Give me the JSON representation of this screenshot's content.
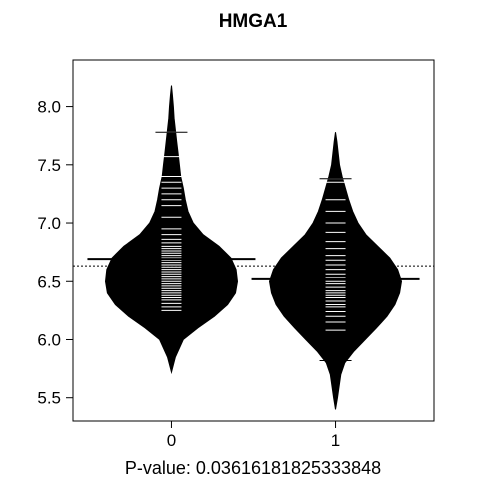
{
  "chart_data": {
    "type": "beanplot",
    "title": "HMGA1",
    "xlabel": "P-value: 0.03616181825333848",
    "ylabel": "",
    "categories": [
      "0",
      "1"
    ],
    "yticks": [
      "5.5",
      "6.0",
      "6.5",
      "7.0",
      "7.5",
      "8.0"
    ],
    "ylim": [
      5.3,
      8.4
    ],
    "xlim": [
      -0.6,
      1.6
    ],
    "overall_mean": 6.63,
    "series": [
      {
        "category": "0",
        "mean": 6.69,
        "range": [
          5.72,
          8.18
        ],
        "density": [
          [
            5.72,
            0.0
          ],
          [
            5.85,
            0.06
          ],
          [
            6.0,
            0.18
          ],
          [
            6.1,
            0.4
          ],
          [
            6.2,
            0.65
          ],
          [
            6.3,
            0.85
          ],
          [
            6.4,
            0.97
          ],
          [
            6.5,
            1.0
          ],
          [
            6.6,
            0.98
          ],
          [
            6.7,
            0.9
          ],
          [
            6.8,
            0.72
          ],
          [
            6.9,
            0.48
          ],
          [
            7.0,
            0.33
          ],
          [
            7.1,
            0.25
          ],
          [
            7.2,
            0.21
          ],
          [
            7.3,
            0.18
          ],
          [
            7.4,
            0.14
          ],
          [
            7.5,
            0.12
          ],
          [
            7.6,
            0.1
          ],
          [
            7.7,
            0.08
          ],
          [
            7.8,
            0.06
          ],
          [
            7.9,
            0.04
          ],
          [
            8.0,
            0.03
          ],
          [
            8.1,
            0.015
          ],
          [
            8.18,
            0.0
          ]
        ],
        "observations": [
          6.12,
          6.25,
          6.28,
          6.31,
          6.34,
          6.36,
          6.38,
          6.4,
          6.42,
          6.44,
          6.46,
          6.48,
          6.5,
          6.52,
          6.54,
          6.56,
          6.58,
          6.6,
          6.62,
          6.64,
          6.66,
          6.68,
          6.7,
          6.72,
          6.74,
          6.76,
          6.78,
          6.8,
          6.83,
          6.86,
          6.9,
          6.95,
          7.05,
          7.15,
          7.2,
          7.25,
          7.3,
          7.35,
          7.4,
          7.57,
          7.78
        ]
      },
      {
        "category": "1",
        "mean": 6.52,
        "range": [
          5.4,
          7.78
        ],
        "density": [
          [
            5.4,
            0.0
          ],
          [
            5.5,
            0.03
          ],
          [
            5.7,
            0.08
          ],
          [
            5.8,
            0.14
          ],
          [
            5.9,
            0.28
          ],
          [
            6.0,
            0.45
          ],
          [
            6.1,
            0.62
          ],
          [
            6.2,
            0.78
          ],
          [
            6.3,
            0.9
          ],
          [
            6.4,
            0.97
          ],
          [
            6.5,
            1.0
          ],
          [
            6.6,
            0.94
          ],
          [
            6.7,
            0.82
          ],
          [
            6.8,
            0.64
          ],
          [
            6.9,
            0.46
          ],
          [
            7.0,
            0.34
          ],
          [
            7.1,
            0.26
          ],
          [
            7.2,
            0.2
          ],
          [
            7.3,
            0.15
          ],
          [
            7.4,
            0.1
          ],
          [
            7.5,
            0.06
          ],
          [
            7.6,
            0.04
          ],
          [
            7.7,
            0.02
          ],
          [
            7.78,
            0.0
          ]
        ],
        "observations": [
          5.82,
          6.08,
          6.15,
          6.2,
          6.24,
          6.28,
          6.3,
          6.33,
          6.36,
          6.38,
          6.4,
          6.42,
          6.45,
          6.48,
          6.5,
          6.53,
          6.56,
          6.6,
          6.64,
          6.68,
          6.72,
          6.78,
          6.84,
          6.92,
          7.0,
          7.1,
          7.2,
          7.35,
          7.38
        ]
      }
    ]
  }
}
